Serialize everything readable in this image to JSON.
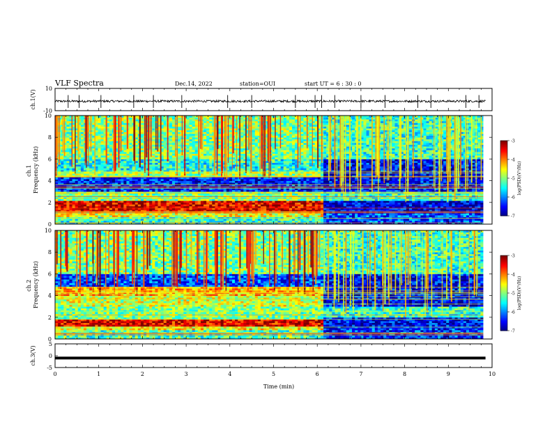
{
  "header": {
    "title": "VLF Spectra",
    "date": "Dec.14, 2022",
    "station": "station=OUI",
    "start": "start  UT =   6  : 30 : 0"
  },
  "chart_data": [
    {
      "type": "line",
      "panel": "ch1-waveform",
      "ylabel": "ch.1(V)",
      "ylim": [
        -10,
        10
      ],
      "yticks": [
        "10",
        "-10"
      ],
      "xlim": [
        0,
        10
      ],
      "baseline": -1.5,
      "noise_amplitude": 1.0,
      "spike_times_min": [
        0.0,
        0.3,
        0.55,
        1.05,
        1.8,
        2.25,
        2.9,
        3.95,
        4.5,
        5.5,
        5.95,
        6.1,
        6.4,
        7.0,
        7.55,
        8.3,
        8.6,
        9.4,
        9.7
      ]
    },
    {
      "type": "heatmap",
      "panel": "ch1-spectrogram",
      "ylabel": "ch.1\nFrequency (kHz)",
      "ylim": [
        0,
        10
      ],
      "yticks": [
        "0",
        "2",
        "4",
        "6",
        "8",
        "10"
      ],
      "xlim": [
        0,
        10
      ],
      "data_end_min": 9.8,
      "transition_min": 6.1,
      "colorbar": {
        "label": "log(PSD)(V²/Hz)",
        "range": [
          -7,
          -3
        ],
        "ticks": [
          "-3",
          "-4",
          "-5",
          "-6",
          "-7"
        ]
      },
      "before_transition_bands_khz": [
        {
          "f0": 0.0,
          "f1": 0.7,
          "level": -5.3
        },
        {
          "f0": 0.7,
          "f1": 1.2,
          "level": -4.6
        },
        {
          "f0": 1.2,
          "f1": 2.1,
          "level": -3.4
        },
        {
          "f0": 2.1,
          "f1": 3.0,
          "level": -5.0
        },
        {
          "f0": 3.0,
          "f1": 4.4,
          "level": -6.4
        },
        {
          "f0": 4.4,
          "f1": 4.8,
          "level": -4.9
        },
        {
          "f0": 4.8,
          "f1": 6.0,
          "level": -5.4
        },
        {
          "f0": 6.0,
          "f1": 10.0,
          "level": -5.0
        }
      ],
      "after_transition_bands_khz": [
        {
          "f0": 0.0,
          "f1": 1.0,
          "level": -6.2
        },
        {
          "f0": 1.0,
          "f1": 2.2,
          "level": -6.6
        },
        {
          "f0": 2.2,
          "f1": 3.0,
          "level": -5.3
        },
        {
          "f0": 3.0,
          "f1": 6.0,
          "level": -6.5
        },
        {
          "f0": 6.0,
          "f1": 10.0,
          "level": -5.3
        }
      ]
    },
    {
      "type": "heatmap",
      "panel": "ch2-spectrogram",
      "ylabel": "ch.2\nFrequency (kHz)",
      "ylim": [
        0,
        10
      ],
      "yticks": [
        "0",
        "2",
        "4",
        "6",
        "8",
        "10"
      ],
      "xlim": [
        0,
        10
      ],
      "data_end_min": 9.8,
      "transition_min": 6.1,
      "colorbar": {
        "label": "log(PSD)(V²/Hz)",
        "range": [
          -7,
          -3
        ],
        "ticks": [
          "-3",
          "-4",
          "-5",
          "-6",
          "-7"
        ]
      },
      "before_transition_bands_khz": [
        {
          "f0": 0.0,
          "f1": 0.8,
          "level": -5.2
        },
        {
          "f0": 0.8,
          "f1": 1.2,
          "level": -4.5
        },
        {
          "f0": 1.2,
          "f1": 1.9,
          "level": -3.4
        },
        {
          "f0": 1.9,
          "f1": 3.0,
          "level": -5.0
        },
        {
          "f0": 3.0,
          "f1": 4.0,
          "level": -4.7
        },
        {
          "f0": 4.0,
          "f1": 4.8,
          "level": -4.2
        },
        {
          "f0": 4.8,
          "f1": 6.0,
          "level": -6.2
        },
        {
          "f0": 6.0,
          "f1": 10.0,
          "level": -5.0
        }
      ],
      "after_transition_bands_khz": [
        {
          "f0": 0.0,
          "f1": 1.0,
          "level": -6.3
        },
        {
          "f0": 1.0,
          "f1": 2.0,
          "level": -6.5
        },
        {
          "f0": 2.0,
          "f1": 3.0,
          "level": -5.3
        },
        {
          "f0": 3.0,
          "f1": 6.0,
          "level": -6.5
        },
        {
          "f0": 6.0,
          "f1": 10.0,
          "level": -5.3
        }
      ]
    },
    {
      "type": "line",
      "panel": "ch3-level",
      "ylabel": "ch.3(V)",
      "ylim": [
        -5,
        5
      ],
      "yticks": [
        "5",
        "0",
        "-5"
      ],
      "xlim": [
        0,
        10
      ],
      "value": -1.0,
      "xlabel": "Time (min)",
      "xticks": [
        "0",
        "1",
        "2",
        "3",
        "4",
        "5",
        "6",
        "7",
        "8",
        "9",
        "10"
      ]
    }
  ]
}
